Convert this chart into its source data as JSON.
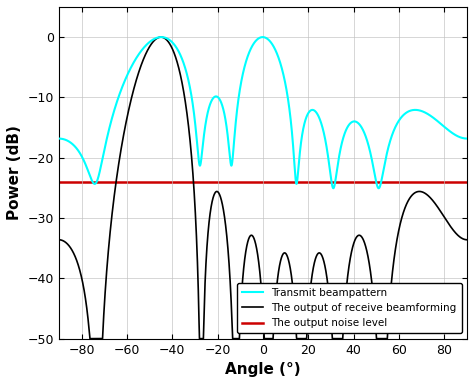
{
  "title": "",
  "xlabel": "Angle (°)",
  "ylabel": "Power (dB)",
  "xlim": [
    -90,
    90
  ],
  "ylim": [
    -50,
    5
  ],
  "yticks": [
    0,
    -10,
    -20,
    -30,
    -40,
    -50
  ],
  "xticks": [
    -80,
    -60,
    -40,
    -20,
    0,
    20,
    40,
    60,
    80
  ],
  "noise_level": -24,
  "bg_color": "#ffffff",
  "grid_color": "#c0c0c0",
  "cyan_color": "#00FFFF",
  "black_color": "#000000",
  "red_color": "#CC0000",
  "legend_labels": [
    "Transmit beampattern",
    "The output of receive beamforming",
    "The output noise level"
  ],
  "figsize": [
    4.74,
    3.84
  ],
  "dpi": 100
}
